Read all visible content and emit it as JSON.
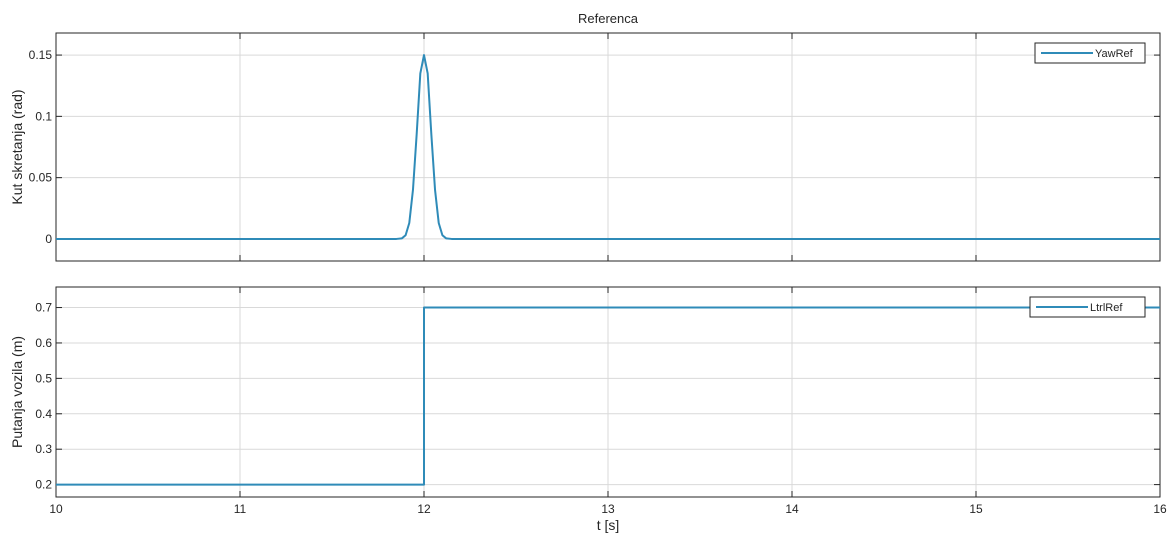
{
  "chart_data": [
    {
      "type": "line",
      "title": "Referenca",
      "xlabel": "",
      "ylabel": "Kut skretanja (rad)",
      "xlim": [
        10,
        16
      ],
      "ylim": [
        -0.018,
        0.168
      ],
      "xticks": [
        10,
        11,
        12,
        13,
        14,
        15,
        16
      ],
      "xtick_labels": [
        "",
        "",
        "",
        "",
        "",
        "",
        ""
      ],
      "yticks": [
        0,
        0.05,
        0.1,
        0.15
      ],
      "ytick_labels": [
        "0",
        "0.05",
        "0.1",
        "0.15"
      ],
      "grid": true,
      "legend": "top-right",
      "series": [
        {
          "name": "YawRef",
          "color": "#2f8bb8",
          "x": [
            10,
            11.5,
            11.85,
            11.88,
            11.9,
            11.92,
            11.94,
            11.96,
            11.98,
            12.0,
            12.02,
            12.04,
            12.06,
            12.08,
            12.1,
            12.12,
            12.15,
            13,
            14,
            15,
            16
          ],
          "y": [
            0,
            0,
            0,
            0.0005,
            0.003,
            0.013,
            0.04,
            0.085,
            0.135,
            0.15,
            0.135,
            0.085,
            0.04,
            0.013,
            0.003,
            0.0005,
            0,
            0,
            0,
            0,
            0
          ]
        }
      ]
    },
    {
      "type": "line",
      "title": "",
      "xlabel": "t [s]",
      "ylabel": "Putanja vozila (m)",
      "xlim": [
        10,
        16
      ],
      "ylim": [
        0.165,
        0.758
      ],
      "xticks": [
        10,
        11,
        12,
        13,
        14,
        15,
        16
      ],
      "xtick_labels": [
        "10",
        "11",
        "12",
        "13",
        "14",
        "15",
        "16"
      ],
      "yticks": [
        0.2,
        0.3,
        0.4,
        0.5,
        0.6,
        0.7
      ],
      "ytick_labels": [
        "0.2",
        "0.3",
        "0.4",
        "0.5",
        "0.6",
        "0.7"
      ],
      "grid": true,
      "legend": "top-right",
      "series": [
        {
          "name": "LtrlRef",
          "color": "#2f8bb8",
          "x": [
            10,
            12,
            12,
            16
          ],
          "y": [
            0.2,
            0.2,
            0.7,
            0.7
          ]
        }
      ]
    }
  ]
}
